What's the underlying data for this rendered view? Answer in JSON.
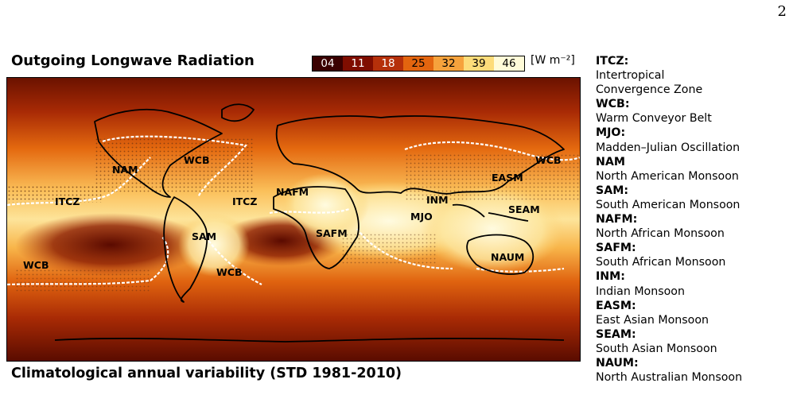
{
  "page_number": "2",
  "map_title": "Outgoing Longwave Radiation",
  "caption": "Climatological annual variability (STD 1981-2010)",
  "colorbar": {
    "ticks": [
      "04",
      "11",
      "18",
      "25",
      "32",
      "39",
      "46"
    ],
    "colors": [
      "#3a0000",
      "#7f0d00",
      "#b5300a",
      "#e3650f",
      "#f6a23c",
      "#fddc7a",
      "#fffbd8"
    ],
    "text_colors": [
      "#ffffff",
      "#ffffff",
      "#ffffff",
      "#000000",
      "#000000",
      "#000000",
      "#000000"
    ],
    "unit": "[W m⁻²]"
  },
  "region_labels": [
    "NAM",
    "WCB",
    "ITCZ",
    "ITCZ",
    "NAFM",
    "SAM",
    "SAFM",
    "WCB",
    "WCB",
    "INM",
    "MJO",
    "EASM",
    "WCB",
    "SEAM",
    "NAUM"
  ],
  "legend": [
    {
      "abbr": "ITCZ:",
      "desc": "Intertropical",
      "desc2": "Convergence Zone"
    },
    {
      "abbr": "WCB:",
      "desc": "Warm Conveyor Belt"
    },
    {
      "abbr": "MJO:",
      "desc": "Madden–Julian Oscillation"
    },
    {
      "abbr": "NAM",
      "desc": "North American Monsoon"
    },
    {
      "abbr": "SAM:",
      "desc": "South American Monsoon"
    },
    {
      "abbr": "NAFM:",
      "desc": "North African Monsoon"
    },
    {
      "abbr": "SAFM:",
      "desc": "South African Monsoon"
    },
    {
      "abbr": "INM:",
      "desc": "Indian Monsoon"
    },
    {
      "abbr": "EASM:",
      "desc": "East Asian Monsoon"
    },
    {
      "abbr": "SEAM:",
      "desc": "South Asian Monsoon"
    },
    {
      "abbr": "NAUM:",
      "desc": "North Australian Monsoon"
    }
  ]
}
